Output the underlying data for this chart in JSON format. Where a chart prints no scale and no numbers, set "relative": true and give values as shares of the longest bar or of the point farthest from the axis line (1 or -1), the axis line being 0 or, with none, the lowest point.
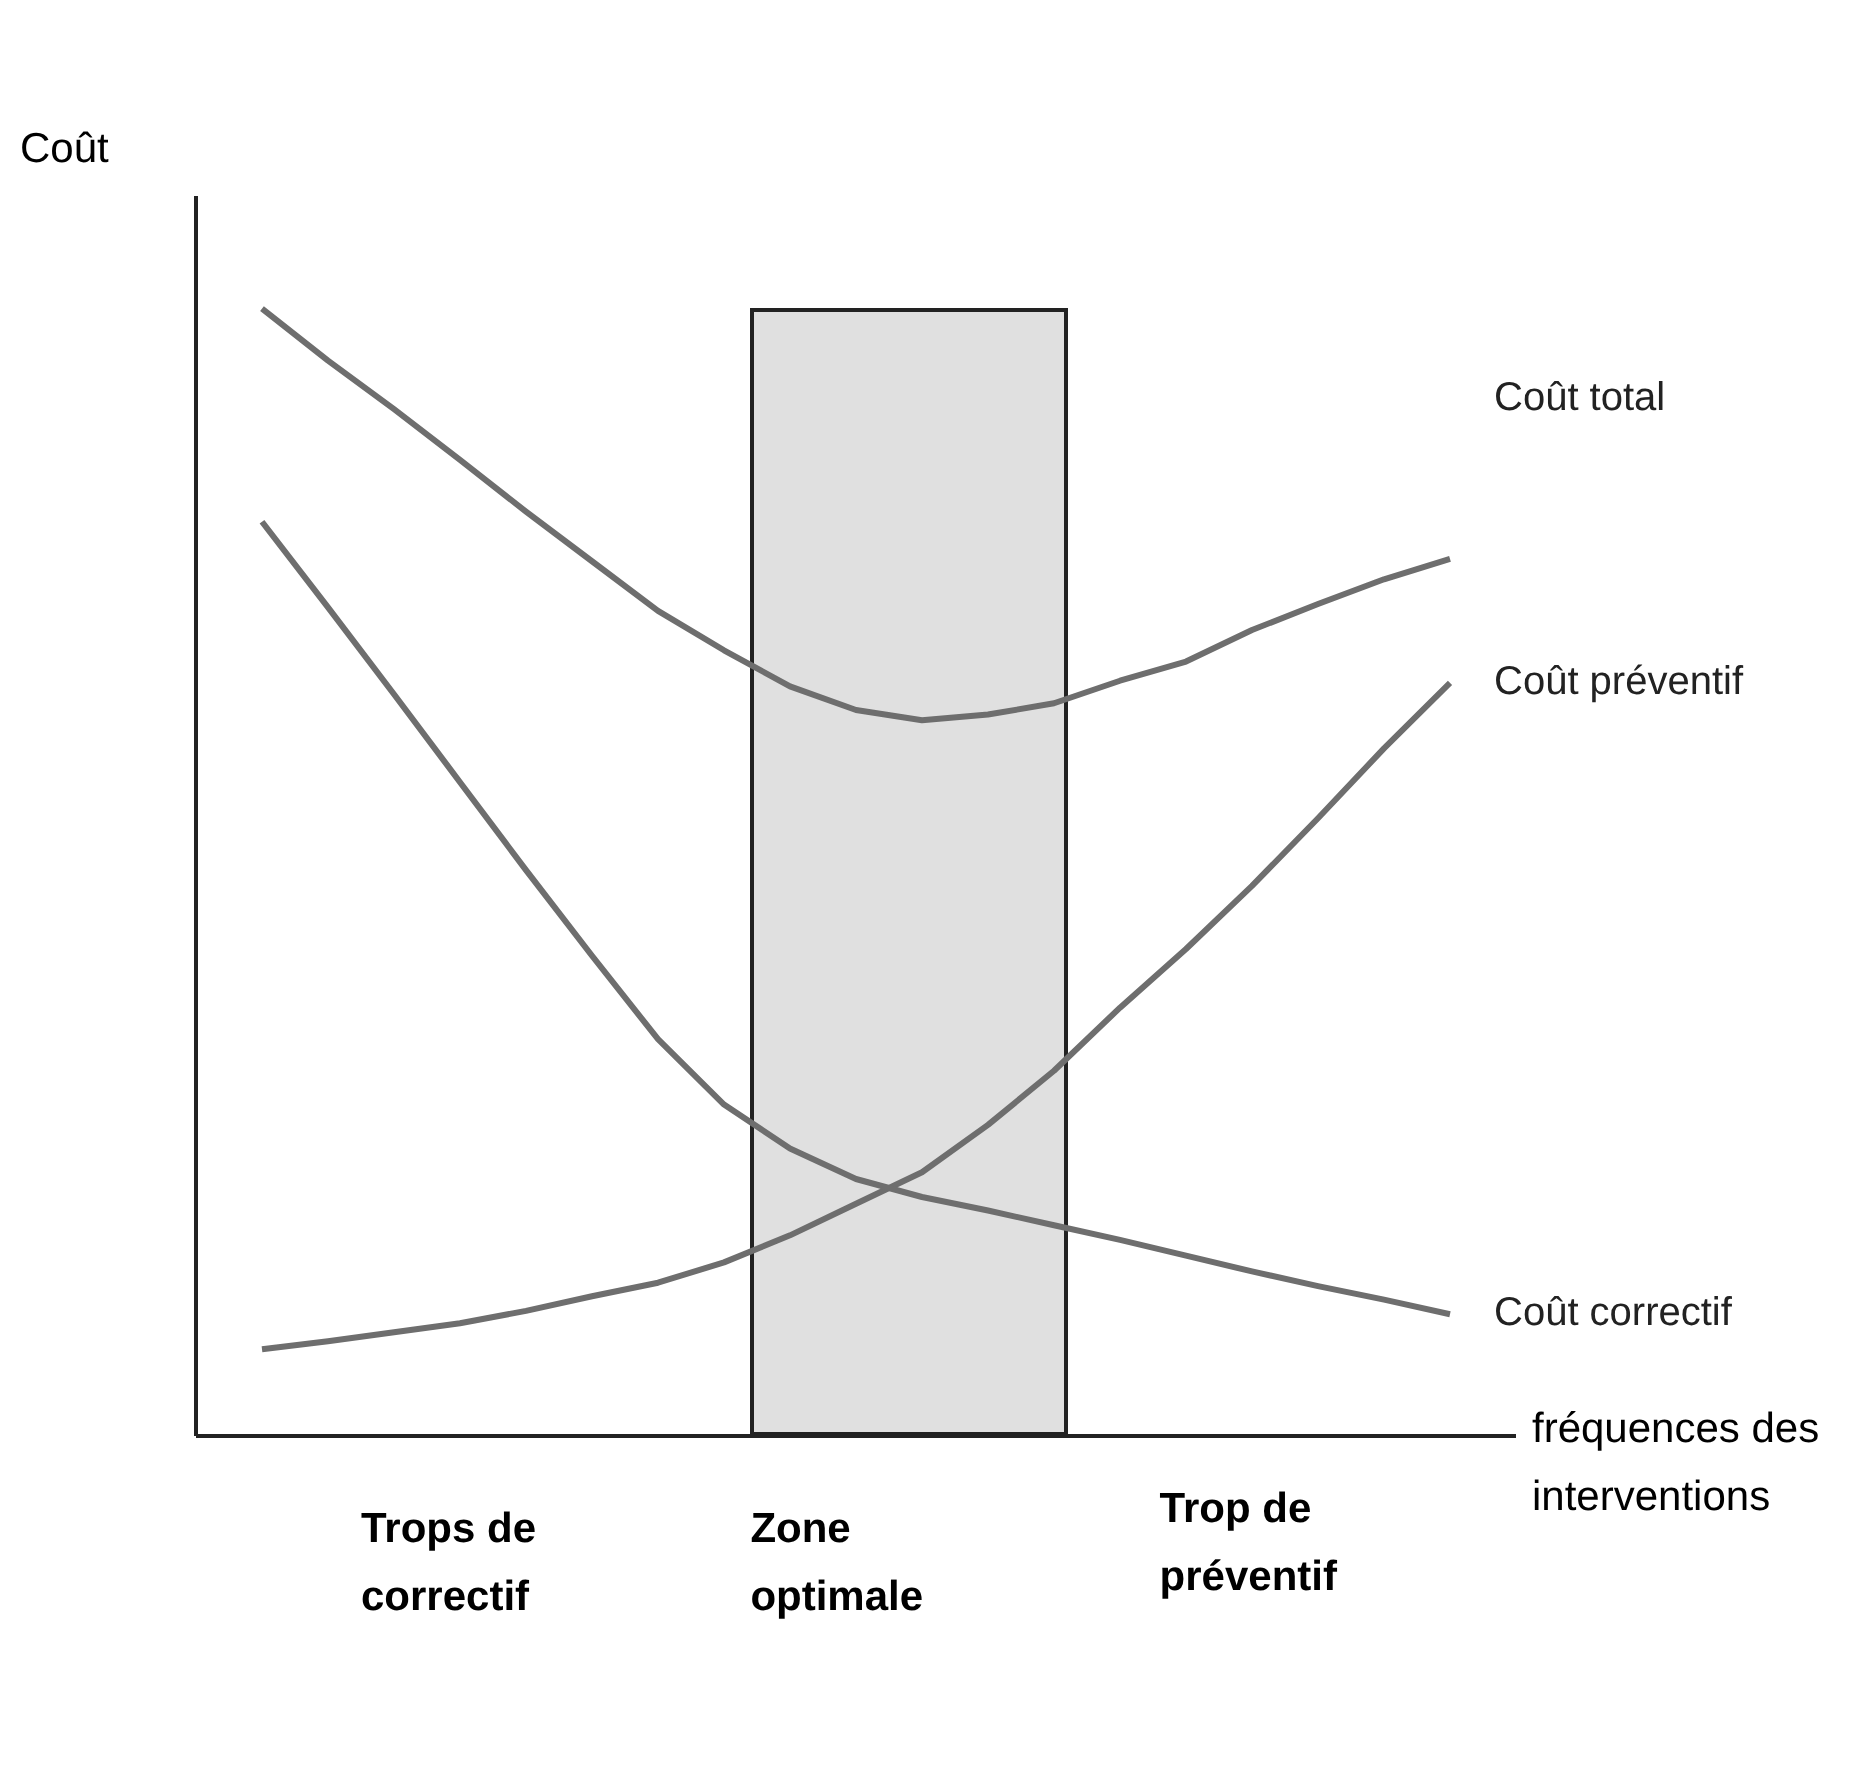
{
  "chart_data": {
    "type": "line",
    "relative": true,
    "ylabel": "Coût",
    "xlabel": "fréquences des interventions",
    "grid": false,
    "legend": false,
    "marker": "none",
    "line_style": "solid",
    "categories": [
      null,
      null,
      null,
      null,
      null,
      null,
      null,
      null,
      null,
      null,
      null,
      null,
      null,
      null,
      null,
      null,
      null,
      null,
      null
    ],
    "annotations": [
      "Trops de correctif",
      "Zone optimale",
      "Trop de préventif"
    ],
    "series": [
      {
        "name": "Coût total",
        "color": "#6e6e6e",
        "values": [
          1.0,
          0.954,
          0.911,
          0.866,
          0.82,
          0.776,
          0.732,
          0.697,
          0.665,
          0.644,
          0.635,
          0.64,
          0.65,
          0.67,
          0.687,
          0.715,
          0.738,
          0.76,
          0.778
        ]
      },
      {
        "name": "Coût préventif",
        "color": "#6e6e6e",
        "values": [
          0.077,
          0.084,
          0.092,
          0.1,
          0.111,
          0.124,
          0.136,
          0.154,
          0.178,
          0.206,
          0.234,
          0.276,
          0.324,
          0.38,
          0.432,
          0.488,
          0.548,
          0.61,
          0.668
        ]
      },
      {
        "name": "Coût correctif",
        "color": "#6e6e6e",
        "values": [
          0.811,
          0.735,
          0.658,
          0.58,
          0.502,
          0.426,
          0.352,
          0.294,
          0.255,
          0.228,
          0.212,
          0.2,
          0.187,
          0.174,
          0.16,
          0.146,
          0.133,
          0.121,
          0.108
        ]
      }
    ]
  }
}
